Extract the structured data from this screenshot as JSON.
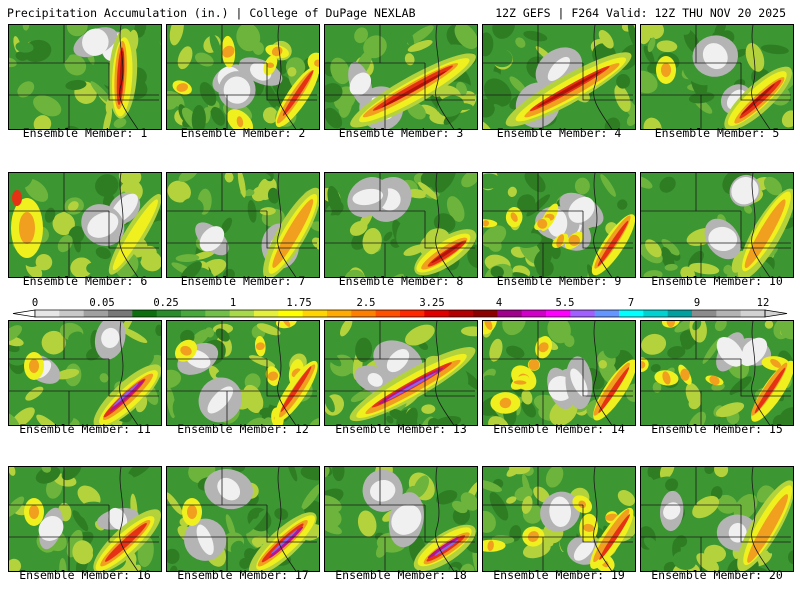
{
  "header": {
    "left": "Precipitation Accumulation (in.) | College of DuPage NEXLAB",
    "right": "12Z GEFS | F264 Valid: 12Z THU NOV 20 2025"
  },
  "caption_prefix": "Ensemble Member:",
  "members": [
    {
      "label": "Ensemble Member: 1",
      "pattern": "north-central-max",
      "max_in": 3.25
    },
    {
      "label": "Ensemble Member: 2",
      "pattern": "dry-center",
      "max_in": 3.25
    },
    {
      "label": "Ensemble Member: 3",
      "pattern": "southwest-northeast-band",
      "max_in": 3.25
    },
    {
      "label": "Ensemble Member: 4",
      "pattern": "southwest-northeast-band",
      "max_in": 3.25
    },
    {
      "label": "Ensemble Member: 5",
      "pattern": "southeast-band",
      "max_in": 3.25
    },
    {
      "label": "Ensemble Member: 6",
      "pattern": "western-max",
      "max_in": 2.5
    },
    {
      "label": "Ensemble Member: 7",
      "pattern": "eastern-band",
      "max_in": 1.75
    },
    {
      "label": "Ensemble Member: 8",
      "pattern": "southern-max",
      "max_in": 3.25
    },
    {
      "label": "Ensemble Member: 9",
      "pattern": "dry-center",
      "max_in": 2.5
    },
    {
      "label": "Ensemble Member: 10",
      "pattern": "eastern-band",
      "max_in": 1.75
    },
    {
      "label": "Ensemble Member: 11",
      "pattern": "southeast-band",
      "max_in": 5.5
    },
    {
      "label": "Ensemble Member: 12",
      "pattern": "scattered",
      "max_in": 3.25
    },
    {
      "label": "Ensemble Member: 13",
      "pattern": "southwest-northeast-band",
      "max_in": 5.5
    },
    {
      "label": "Ensemble Member: 14",
      "pattern": "dry-center",
      "max_in": 2.5
    },
    {
      "label": "Ensemble Member: 15",
      "pattern": "scattered",
      "max_in": 3.25
    },
    {
      "label": "Ensemble Member: 16",
      "pattern": "southeast-band",
      "max_in": 2.5
    },
    {
      "label": "Ensemble Member: 17",
      "pattern": "southeast-band",
      "max_in": 5.5
    },
    {
      "label": "Ensemble Member: 18",
      "pattern": "southern-max",
      "max_in": 5.5
    },
    {
      "label": "Ensemble Member: 19",
      "pattern": "scattered",
      "max_in": 3.25
    },
    {
      "label": "Ensemble Member: 20",
      "pattern": "eastern-band",
      "max_in": 2.5
    }
  ],
  "color_scale": {
    "units": "in.",
    "labels": [
      "0",
      "0.05",
      "0.25",
      "1",
      "1.75",
      "2.5",
      "3.25",
      "4",
      "5.5",
      "7",
      "9",
      "12"
    ],
    "colors": [
      "#e6e6e6",
      "#c8c8c8",
      "#a0a0a0",
      "#787878",
      "#0e6f0e",
      "#2a8c2a",
      "#48a83c",
      "#72c04a",
      "#a8d94a",
      "#e5f03c",
      "#ffff00",
      "#ffd400",
      "#ffaa00",
      "#ff7f00",
      "#ff5000",
      "#ff2800",
      "#e00000",
      "#b40000",
      "#8c0000",
      "#a0008c",
      "#d000c8",
      "#ff00ff",
      "#a060ff",
      "#6496ff",
      "#00ffff",
      "#00d2d2",
      "#00a0a0",
      "#8c8c8c",
      "#b4b4b4",
      "#d2d2d2"
    ]
  },
  "precip_palette": {
    "dry_white": "#f0f0f0",
    "trace_gray": "#b4b4b4",
    "dark_gray": "#828282",
    "green_dark": "#2e7d23",
    "green": "#3c9632",
    "green_light": "#6cb43c",
    "yellow_green": "#b4d23c",
    "yellow": "#f0f01e",
    "orange": "#f0a01e",
    "red": "#e63214",
    "dark_red": "#b4140a",
    "magenta": "#b4148c",
    "violet": "#8c64e6"
  }
}
